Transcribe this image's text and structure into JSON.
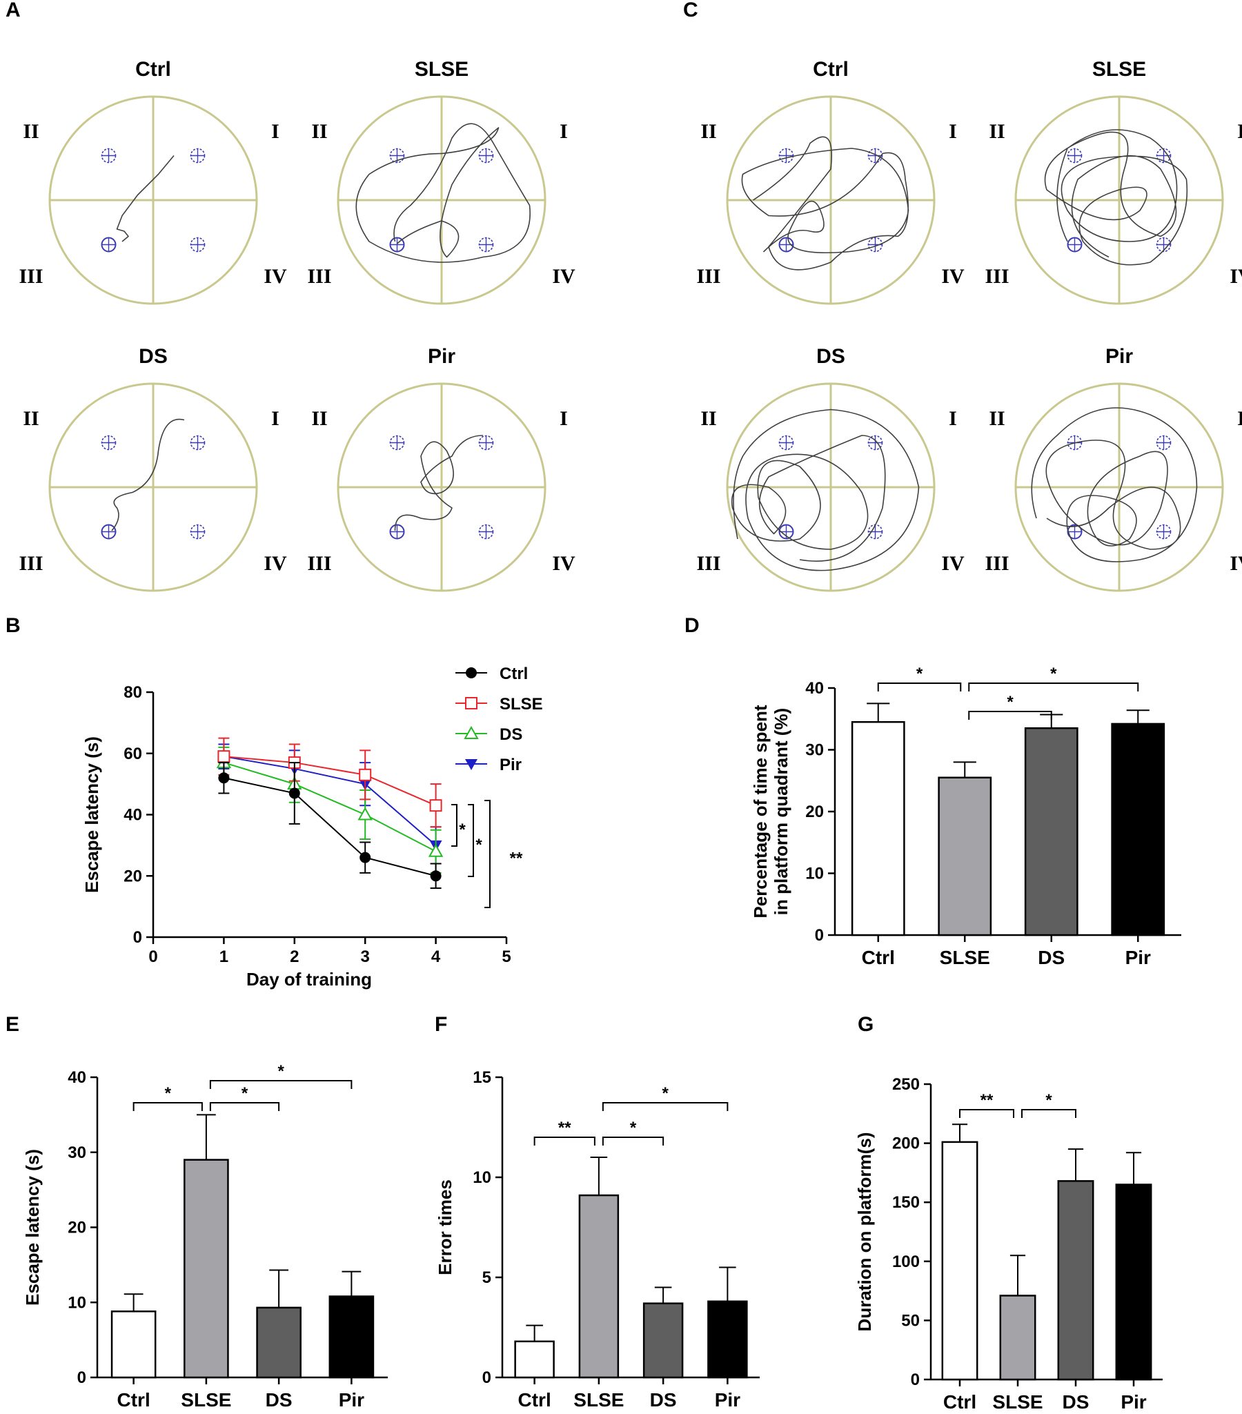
{
  "panels": {
    "A": {
      "letter": "A",
      "maze_titles": [
        "Ctrl",
        "SLSE",
        "DS",
        "Pir"
      ],
      "quadrants": [
        "I",
        "II",
        "III",
        "IV"
      ]
    },
    "C": {
      "letter": "C",
      "maze_titles": [
        "Ctrl",
        "SLSE",
        "DS",
        "Pir"
      ],
      "quadrants": [
        "I",
        "II",
        "III",
        "IV"
      ]
    }
  },
  "colors": {
    "maze_circle": "#c9c88f",
    "path": "#404040",
    "platform": "#3b3bb5",
    "ctrl": "#000000",
    "slse": "#e8262b",
    "ds": "#22bb22",
    "pir": "#1f1fc8",
    "bar_ctrl": "#ffffff",
    "bar_slse": "#a3a3a8",
    "bar_ds": "#5f5f5f",
    "bar_pir": "#000000"
  },
  "chart_data": [
    {
      "id": "B",
      "letter": "B",
      "type": "line",
      "title": "",
      "xlabel": "Day of training",
      "ylabel": "Escape latency (s)",
      "x": [
        1,
        2,
        3,
        4
      ],
      "xlim": [
        0,
        5
      ],
      "ylim": [
        0,
        80
      ],
      "xticks": [
        "0",
        "1",
        "2",
        "3",
        "4",
        "5"
      ],
      "yticks": [
        "0",
        "20",
        "40",
        "60",
        "80"
      ],
      "series": [
        {
          "name": "Ctrl",
          "marker": "circle-filled",
          "values": [
            52,
            47,
            26,
            20
          ],
          "errors": [
            5,
            10,
            5,
            4
          ]
        },
        {
          "name": "SLSE",
          "marker": "square-open",
          "values": [
            59,
            57,
            53,
            43
          ],
          "errors": [
            6,
            6,
            8,
            7
          ]
        },
        {
          "name": "DS",
          "marker": "triangle-open",
          "values": [
            57,
            50,
            40,
            28
          ],
          "errors": [
            5,
            6,
            8,
            7
          ]
        },
        {
          "name": "Pir",
          "marker": "triangle-down-filled",
          "values": [
            59,
            55,
            50,
            30
          ],
          "errors": [
            4,
            6,
            7,
            6
          ]
        }
      ],
      "legend_position": "top-right",
      "significance": [
        "*",
        "*",
        "**"
      ]
    },
    {
      "id": "D",
      "letter": "D",
      "type": "bar",
      "title": "",
      "xlabel": "",
      "ylabel": "Percentage of time spent in platform quadrant (%)",
      "ylabel_lines": [
        "Percentage of time spent",
        "in platform quadrant (%)"
      ],
      "categories": [
        "Ctrl",
        "SLSE",
        "DS",
        "Pir"
      ],
      "values": [
        34.5,
        25.5,
        33.5,
        34.2
      ],
      "errors": [
        3.0,
        2.5,
        2.2,
        2.2
      ],
      "ylim": [
        0,
        40
      ],
      "yticks": [
        "0",
        "10",
        "20",
        "30",
        "40"
      ],
      "significance": [
        {
          "from": 0,
          "to": 1,
          "label": "*"
        },
        {
          "from": 1,
          "to": 3,
          "label": "*"
        },
        {
          "from": 1,
          "to": 2,
          "label": "*"
        }
      ]
    },
    {
      "id": "E",
      "letter": "E",
      "type": "bar",
      "title": "",
      "xlabel": "",
      "ylabel": "Escape latency (s)",
      "categories": [
        "Ctrl",
        "SLSE",
        "DS",
        "Pir"
      ],
      "values": [
        8.8,
        29.0,
        9.3,
        10.8
      ],
      "errors": [
        2.3,
        6.0,
        5.0,
        3.3
      ],
      "ylim": [
        0,
        40
      ],
      "yticks": [
        "0",
        "10",
        "20",
        "30",
        "40"
      ],
      "significance": [
        {
          "from": 0,
          "to": 1,
          "label": "*"
        },
        {
          "from": 1,
          "to": 2,
          "label": "*"
        },
        {
          "from": 1,
          "to": 3,
          "label": "*"
        }
      ]
    },
    {
      "id": "F",
      "letter": "F",
      "type": "bar",
      "title": "",
      "xlabel": "",
      "ylabel": "Error times",
      "categories": [
        "Ctrl",
        "SLSE",
        "DS",
        "Pir"
      ],
      "values": [
        1.8,
        9.1,
        3.7,
        3.8
      ],
      "errors": [
        0.8,
        1.9,
        0.8,
        1.7
      ],
      "ylim": [
        0,
        15
      ],
      "yticks": [
        "0",
        "5",
        "10",
        "15"
      ],
      "significance": [
        {
          "from": 0,
          "to": 1,
          "label": "**"
        },
        {
          "from": 1,
          "to": 2,
          "label": "*"
        },
        {
          "from": 1,
          "to": 3,
          "label": "*"
        }
      ]
    },
    {
      "id": "G",
      "letter": "G",
      "type": "bar",
      "title": "",
      "xlabel": "",
      "ylabel": "Duration on platform(s)",
      "categories": [
        "Ctrl",
        "SLSE",
        "DS",
        "Pir"
      ],
      "values": [
        201,
        71,
        168,
        165
      ],
      "errors": [
        15,
        34,
        27,
        27
      ],
      "ylim": [
        0,
        250
      ],
      "yticks": [
        "0",
        "50",
        "100",
        "150",
        "200",
        "250"
      ],
      "significance": [
        {
          "from": 0,
          "to": 1,
          "label": "**"
        },
        {
          "from": 1,
          "to": 2,
          "label": "*"
        }
      ]
    }
  ]
}
